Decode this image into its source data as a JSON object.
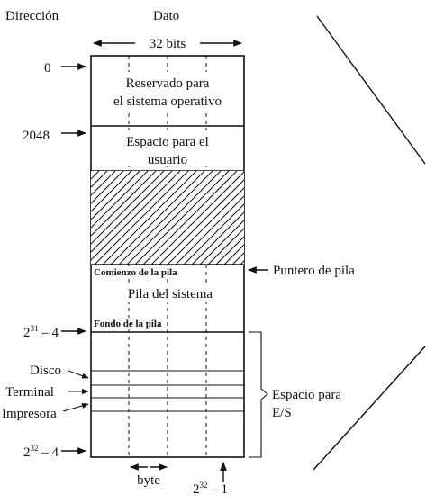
{
  "headers": {
    "direccion": "Dirección",
    "dato": "Dato",
    "width": "32 bits"
  },
  "address_labels": {
    "zero": "0",
    "a2048": "2048",
    "pow31_base": "2",
    "pow31_exp": "31",
    "pow31_tail": " – 4",
    "pow32_base": "2",
    "pow32_exp": "32",
    "pow32_tail": " – 4"
  },
  "regions": {
    "reserved_line1": "Reservado para",
    "reserved_line2": "el sistema operativo",
    "user_line1": "Espacio para el",
    "user_line2": "usuario",
    "stack_start": "Comienzo de la pila",
    "stack_title": "Pila del sistema",
    "stack_bottom": "Fondo de la pila"
  },
  "devices": {
    "disk": "Disco",
    "terminal": "Terminal",
    "printer": "Impresora"
  },
  "right_labels": {
    "stack_pointer": "Puntero de pila",
    "io_line1": "Espacio para",
    "io_line2": "E/S"
  },
  "bottom_labels": {
    "byte": "byte",
    "last_base": "2",
    "last_exp": "32",
    "last_tail": " – 1"
  }
}
